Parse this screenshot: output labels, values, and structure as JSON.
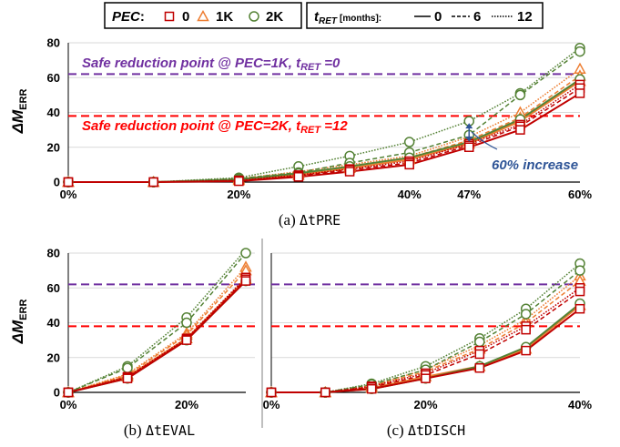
{
  "legend": {
    "pec_label": "PEC",
    "pec_sep": ":",
    "pec_levels": [
      "0",
      "1K",
      "2K"
    ],
    "tret_label": "t",
    "tret_sub": "RET",
    "tret_unit": "[months]:",
    "tret_levels": [
      "0",
      "6",
      "12"
    ]
  },
  "colors": {
    "pec_0": "#c00000",
    "pec_1k": "#ed7d31",
    "pec_2k": "#548235",
    "safe_1k_line": "#7030a0",
    "safe_2k_line": "#ff0000",
    "increase_annotation": "#2f5597",
    "divider": "#bfbfbf",
    "grid": "#d9d9d9"
  },
  "y_axis": {
    "label": "ΔM",
    "label_sub": "ERR",
    "ticks": [
      "0",
      "20",
      "40",
      "60",
      "80"
    ],
    "ylim": [
      0,
      80
    ]
  },
  "annotations": {
    "safe_1k": {
      "text_main": "Safe reduction point @ PEC=1K, t",
      "text_sub": "RET",
      "text_tail": " =0",
      "value": 62
    },
    "safe_2k": {
      "text_main": "Safe reduction point @ PEC=2K, t",
      "text_sub": "RET",
      "text_tail": " =12",
      "value": 38
    },
    "increase": {
      "text": "60% increase",
      "from": 22,
      "to": 35,
      "at_x": 47
    }
  },
  "chart_data": [
    {
      "type": "line",
      "panel": "a",
      "caption_prefix": "(a) ",
      "caption_var": "ΔtPRE",
      "x": [
        0,
        10,
        20,
        27,
        33,
        40,
        47,
        53,
        60
      ],
      "x_ticks": [
        {
          "value": 0,
          "label": "0%"
        },
        {
          "value": 20,
          "label": "20%"
        },
        {
          "value": 40,
          "label": "40%"
        },
        {
          "value": 47,
          "label": "47%"
        },
        {
          "value": 60,
          "label": "60%"
        }
      ],
      "xlim": [
        0,
        60
      ],
      "ylim": [
        0,
        80
      ],
      "series": [
        {
          "pec": "0",
          "tret": "0",
          "values": [
            0,
            0,
            0.5,
            3,
            6,
            10,
            20,
            30,
            51
          ]
        },
        {
          "pec": "0",
          "tret": "6",
          "values": [
            0,
            0,
            0.8,
            3.5,
            7,
            11,
            21,
            32,
            54
          ]
        },
        {
          "pec": "0",
          "tret": "12",
          "values": [
            0,
            0,
            1,
            4,
            7.5,
            12,
            22,
            33,
            56
          ]
        },
        {
          "pec": "1K",
          "tret": "0",
          "values": [
            0,
            0,
            1,
            4,
            8,
            13,
            22,
            35,
            58
          ]
        },
        {
          "pec": "1K",
          "tret": "6",
          "values": [
            0,
            0,
            1.5,
            5,
            9,
            14,
            24,
            37,
            61
          ]
        },
        {
          "pec": "1K",
          "tret": "12",
          "values": [
            0,
            0,
            2,
            6,
            10,
            15,
            26,
            40,
            65
          ]
        },
        {
          "pec": "2K",
          "tret": "0",
          "values": [
            0,
            0,
            1.5,
            5,
            9,
            14,
            23,
            36,
            59
          ]
        },
        {
          "pec": "2K",
          "tret": "6",
          "values": [
            0,
            0,
            2,
            5.5,
            11,
            17,
            27,
            50,
            75
          ]
        },
        {
          "pec": "2K",
          "tret": "12",
          "values": [
            0,
            0,
            2.5,
            9,
            15,
            23,
            35,
            51,
            77
          ]
        }
      ]
    },
    {
      "type": "line",
      "panel": "b",
      "caption_prefix": "(b) ",
      "caption_var": "ΔtEVAL",
      "x": [
        0,
        10,
        20,
        30
      ],
      "x_ticks": [
        {
          "value": 0,
          "label": "0%"
        },
        {
          "value": 20,
          "label": "20%"
        }
      ],
      "xlim": [
        0,
        30
      ],
      "ylim": [
        0,
        80
      ],
      "series": [
        {
          "pec": "0",
          "tret": "0",
          "values": [
            0,
            8,
            30,
            64
          ]
        },
        {
          "pec": "0",
          "tret": "6",
          "values": [
            0,
            8.5,
            30.5,
            65
          ]
        },
        {
          "pec": "0",
          "tret": "12",
          "values": [
            0,
            9,
            31,
            66
          ]
        },
        {
          "pec": "1K",
          "tret": "0",
          "values": [
            0,
            9,
            31,
            65
          ]
        },
        {
          "pec": "1K",
          "tret": "6",
          "values": [
            0,
            10,
            33,
            70
          ]
        },
        {
          "pec": "1K",
          "tret": "12",
          "values": [
            0,
            10.5,
            34,
            72
          ]
        },
        {
          "pec": "2K",
          "tret": "0",
          "values": [
            0,
            8,
            30,
            64
          ]
        },
        {
          "pec": "2K",
          "tret": "6",
          "values": [
            0,
            14,
            40,
            80
          ]
        },
        {
          "pec": "2K",
          "tret": "12",
          "values": [
            0,
            15,
            43,
            82
          ]
        }
      ]
    },
    {
      "type": "line",
      "panel": "c",
      "caption_prefix": "(c) ",
      "caption_var": "ΔtDISCH",
      "x": [
        0,
        7,
        13,
        20,
        27,
        33,
        40
      ],
      "x_ticks": [
        {
          "value": 0,
          "label": "0%"
        },
        {
          "value": 20,
          "label": "20%"
        },
        {
          "value": 40,
          "label": "40%"
        }
      ],
      "xlim": [
        0,
        40
      ],
      "ylim": [
        0,
        80
      ],
      "series": [
        {
          "pec": "0",
          "tret": "0",
          "values": [
            0,
            0,
            2,
            8,
            14,
            24,
            48
          ]
        },
        {
          "pec": "0",
          "tret": "6",
          "values": [
            0,
            0,
            3,
            10,
            22,
            36,
            58
          ]
        },
        {
          "pec": "0",
          "tret": "12",
          "values": [
            0,
            0,
            3.5,
            11,
            24,
            38,
            60
          ]
        },
        {
          "pec": "1K",
          "tret": "0",
          "values": [
            0,
            0,
            2.5,
            9,
            15,
            25,
            50
          ]
        },
        {
          "pec": "1K",
          "tret": "6",
          "values": [
            0,
            0,
            3.5,
            12,
            25,
            40,
            64
          ]
        },
        {
          "pec": "1K",
          "tret": "12",
          "values": [
            0,
            0,
            4,
            13,
            27,
            42,
            67
          ]
        },
        {
          "pec": "2K",
          "tret": "0",
          "values": [
            0,
            0,
            2,
            8,
            15,
            26,
            51
          ]
        },
        {
          "pec": "2K",
          "tret": "6",
          "values": [
            0,
            0,
            4.5,
            13,
            29,
            45,
            70
          ]
        },
        {
          "pec": "2K",
          "tret": "12",
          "values": [
            0,
            0,
            5,
            15,
            31,
            48,
            74
          ]
        }
      ]
    }
  ]
}
